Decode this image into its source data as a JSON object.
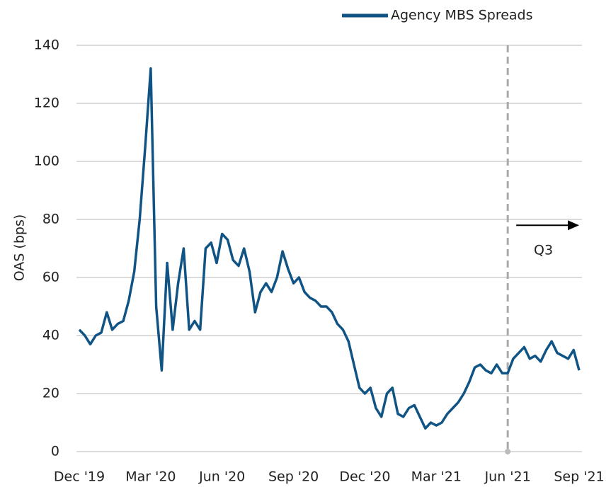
{
  "chart_data": {
    "type": "line",
    "y_label": "OAS (bps)",
    "categories": [
      "Dec '19",
      null,
      null,
      null,
      null,
      null,
      null,
      null,
      null,
      null,
      null,
      null,
      null,
      "Mar '20",
      null,
      null,
      null,
      null,
      null,
      null,
      null,
      null,
      null,
      null,
      null,
      null,
      "Jun '20",
      null,
      null,
      null,
      null,
      null,
      null,
      null,
      null,
      null,
      null,
      null,
      null,
      "Sep '20",
      null,
      null,
      null,
      null,
      null,
      null,
      null,
      null,
      null,
      null,
      null,
      null,
      "Dec '20",
      null,
      null,
      null,
      null,
      null,
      null,
      null,
      null,
      null,
      null,
      null,
      null,
      "Mar '21",
      null,
      null,
      null,
      null,
      null,
      null,
      null,
      null,
      null,
      null,
      null,
      null,
      "Jun '21",
      null,
      null,
      null,
      null,
      null,
      null,
      null,
      null,
      null,
      null,
      null,
      null,
      "Sep '21"
    ],
    "series": [
      {
        "name": "Agency MBS Spreads",
        "color": "#0f5484",
        "values": [
          42,
          40,
          37,
          40,
          41,
          48,
          42,
          44,
          45,
          52,
          62,
          80,
          105,
          132,
          50,
          28,
          65,
          42,
          58,
          70,
          42,
          45,
          42,
          70,
          72,
          65,
          75,
          73,
          66,
          64,
          70,
          62,
          48,
          55,
          58,
          55,
          60,
          69,
          63,
          58,
          60,
          55,
          53,
          52,
          50,
          50,
          48,
          44,
          42,
          38,
          30,
          22,
          20,
          22,
          15,
          12,
          20,
          22,
          13,
          12,
          15,
          16,
          12,
          8,
          10,
          9,
          10,
          13,
          15,
          17,
          20,
          24,
          29,
          30,
          28,
          27,
          30,
          27,
          27,
          32,
          34,
          36,
          32,
          33,
          31,
          35,
          38,
          34,
          33,
          32,
          35,
          28
        ]
      }
    ],
    "ylim": [
      0,
      140
    ],
    "yticks": [
      0,
      20,
      40,
      60,
      80,
      100,
      120,
      140
    ],
    "grid": true,
    "legend": "top-right",
    "vline": "Jun '21",
    "annotation": "Q3"
  }
}
